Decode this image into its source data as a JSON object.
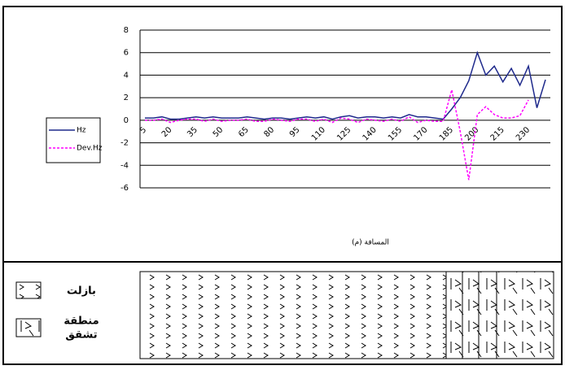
{
  "chart_data": {
    "type": "line",
    "xlabel": "المسافة (م)",
    "categories": [
      5,
      null,
      null,
      20,
      null,
      null,
      35,
      null,
      null,
      50,
      null,
      null,
      65,
      null,
      null,
      80,
      null,
      null,
      95,
      null,
      null,
      110,
      null,
      null,
      125,
      null,
      null,
      140,
      null,
      null,
      155,
      null,
      null,
      170,
      null,
      null,
      185,
      null,
      null,
      200,
      null,
      null,
      215,
      null,
      null,
      230,
      null,
      null
    ],
    "series": [
      {
        "name": "Hz",
        "color": "#1f2a8c",
        "dash": false,
        "values": [
          0.2,
          0.2,
          0.3,
          0.1,
          0.1,
          0.2,
          0.3,
          0.2,
          0.3,
          0.2,
          0.2,
          0.2,
          0.3,
          0.2,
          0.1,
          0.2,
          0.2,
          0.1,
          0.2,
          0.3,
          0.2,
          0.3,
          0.1,
          0.3,
          0.4,
          0.2,
          0.3,
          0.3,
          0.2,
          0.3,
          0.2,
          0.5,
          0.3,
          0.3,
          0.2,
          0.1,
          1,
          2,
          3.5,
          6,
          4,
          4.8,
          3.4,
          4.6,
          3.1,
          4.8,
          1.1,
          3.6
        ]
      },
      {
        "name": "Dev.Hz",
        "color": "#ff00ff",
        "dash": true,
        "values": [
          0,
          0,
          0.1,
          -0.2,
          0,
          0.1,
          0.1,
          -0.1,
          0.1,
          -0.1,
          0,
          0,
          0.1,
          -0.1,
          -0.1,
          0.1,
          0,
          -0.1,
          0.1,
          0.1,
          -0.1,
          0.1,
          -0.2,
          0.2,
          0.1,
          -0.2,
          0.1,
          0,
          -0.1,
          0.1,
          -0.1,
          0.3,
          -0.2,
          0,
          -0.1,
          -0.1,
          2.7,
          -1,
          -5.3,
          0.5,
          1.2,
          0.5,
          0.2,
          0.2,
          0.4,
          1.8,
          null,
          null
        ]
      }
    ],
    "ylim": [
      -6,
      8
    ],
    "yticks": [
      -6,
      -4,
      -2,
      0,
      2,
      4,
      6,
      8
    ],
    "grid": true
  },
  "log_legend": {
    "basalt": "بازلت",
    "fracture": [
      "منطقة",
      "تشقق"
    ]
  }
}
